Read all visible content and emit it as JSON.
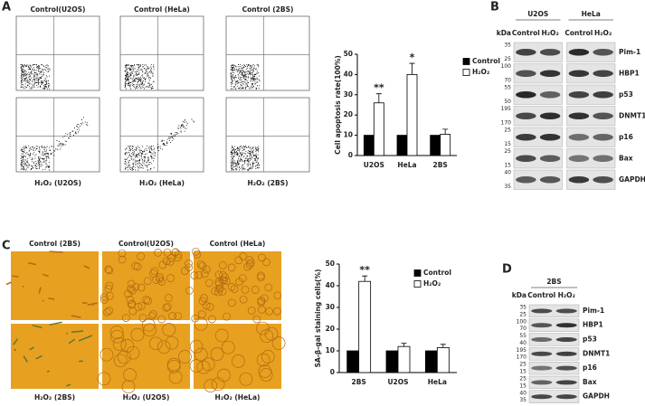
{
  "panel_labels": [
    "A",
    "B",
    "C",
    "D"
  ],
  "flow": {
    "top_titles": [
      "Control(U2OS)",
      "Control (HeLa)",
      "Control (2BS)"
    ],
    "bottom_titles": [
      "H₂O₂ (U2OS)",
      "H₂O₂ (HeLa)",
      "H₂O₂ (2BS)"
    ]
  },
  "micrographs": {
    "top_titles": [
      "Control (2BS)",
      "Control(U2OS)",
      "Control (HeLa)"
    ],
    "bottom_titles": [
      "H₂O₂ (2BS)",
      "H₂O₂ (U2OS)",
      "H₂O₂ (HeLa)"
    ]
  },
  "chart_data": [
    {
      "type": "bar",
      "ylabel": "Cell apoptosis rate(100%)",
      "categories": [
        "U2OS",
        "HeLa",
        "2BS"
      ],
      "series": [
        {
          "name": "Control",
          "color": "#000000",
          "values": [
            10,
            10,
            10
          ]
        },
        {
          "name": "H₂O₂",
          "color": "#ffffff",
          "values": [
            26,
            40,
            10.5
          ],
          "errors": [
            4.5,
            5.5,
            2.5
          ]
        }
      ],
      "annotations": [
        "**",
        "*",
        null
      ],
      "ylim": [
        0,
        50
      ],
      "yticks": [
        0,
        10,
        20,
        30,
        40,
        50
      ]
    },
    {
      "type": "bar",
      "ylabel": "SA-β-gal staining cells(%)",
      "categories": [
        "2BS",
        "U2OS",
        "HeLa"
      ],
      "series": [
        {
          "name": "Control",
          "color": "#000000",
          "values": [
            10,
            10,
            10
          ]
        },
        {
          "name": "H₂O₂",
          "color": "#ffffff",
          "values": [
            42,
            12,
            11.5
          ],
          "errors": [
            2.5,
            1.5,
            1.5
          ]
        }
      ],
      "annotations": [
        "**",
        null,
        null
      ],
      "ylim": [
        0,
        50
      ],
      "yticks": [
        0,
        10,
        20,
        30,
        40,
        50
      ]
    }
  ],
  "blot_b": {
    "cell_lines": [
      "U2OS",
      "HeLa"
    ],
    "kda": "kDa",
    "lanes": [
      "Control",
      "H₂O₂",
      "Control",
      "H₂O₂"
    ],
    "rows": [
      {
        "protein": "Pim-1",
        "markers": [
          "35",
          "25"
        ]
      },
      {
        "protein": "HBP1",
        "markers": [
          "100",
          "70"
        ]
      },
      {
        "protein": "p53",
        "markers": [
          "55",
          "50"
        ]
      },
      {
        "protein": "DNMT1",
        "markers": [
          "195",
          "170"
        ]
      },
      {
        "protein": "p16",
        "markers": [
          "25",
          "15"
        ]
      },
      {
        "protein": "Bax",
        "markers": [
          "25",
          "15"
        ]
      },
      {
        "protein": "GAPDH",
        "markers": [
          "40",
          "35"
        ]
      }
    ]
  },
  "blot_d": {
    "cell_lines": [
      "2BS"
    ],
    "kda": "kDa",
    "lanes": [
      "Control",
      "H₂O₂"
    ],
    "rows": [
      {
        "protein": "Pim-1",
        "markers": [
          "35",
          "25"
        ]
      },
      {
        "protein": "HBP1",
        "markers": [
          "100",
          "70"
        ]
      },
      {
        "protein": "p53",
        "markers": [
          "55",
          "40"
        ]
      },
      {
        "protein": "DNMT1",
        "markers": [
          "195",
          "170"
        ]
      },
      {
        "protein": "p16",
        "markers": [
          "25",
          "15"
        ]
      },
      {
        "protein": "Bax",
        "markers": [
          "25",
          "15"
        ]
      },
      {
        "protein": "GAPDH",
        "markers": [
          "40",
          "35"
        ]
      }
    ]
  }
}
